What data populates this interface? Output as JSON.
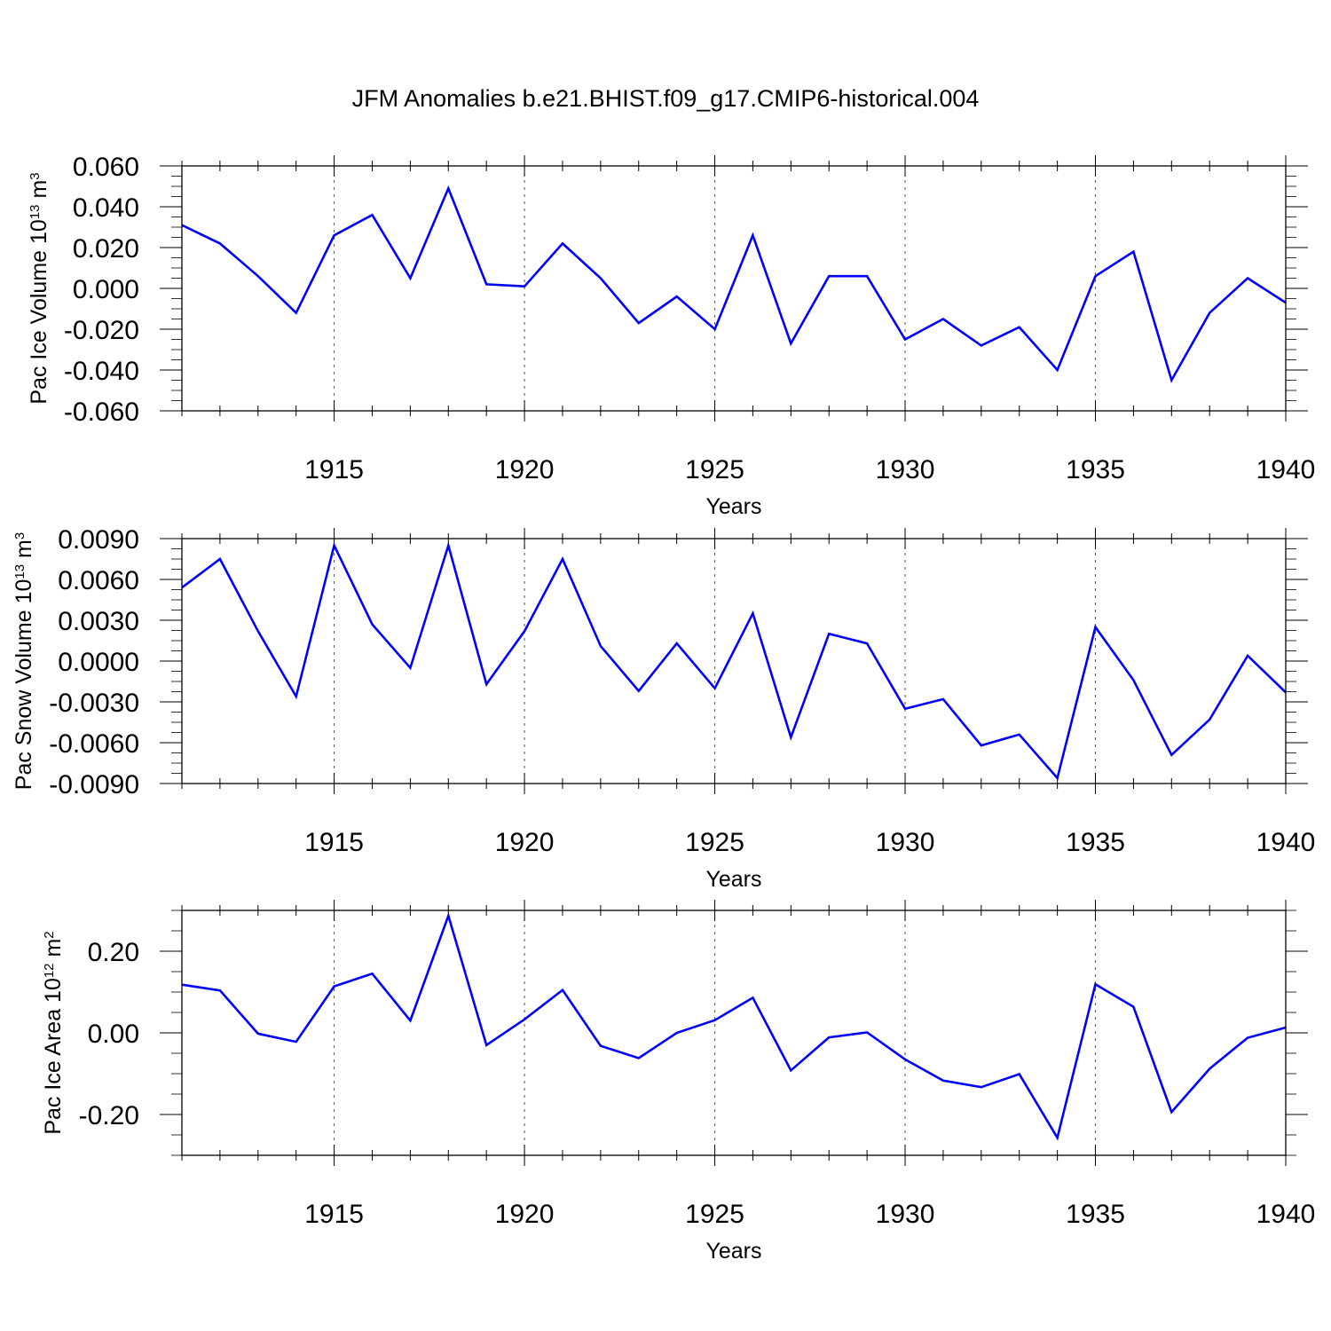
{
  "title": "JFM Anomalies b.e21.BHIST.f09_g17.CMIP6-historical.004",
  "colors": {
    "line": "#0000ff",
    "axis": "#000000",
    "grid": "#555555",
    "background": "#ffffff"
  },
  "chart_data": [
    {
      "type": "line",
      "name": "pac-ice-volume",
      "ylabel_main": "Pac Ice Volume 10",
      "ylabel_sup1": "13",
      "ylabel_mid": " m",
      "ylabel_sup2": "3",
      "xlabel": "Years",
      "xlim": [
        1911,
        1940
      ],
      "ylim": [
        -0.06,
        0.06
      ],
      "yticks": [
        -0.06,
        -0.04,
        -0.02,
        0.0,
        0.02,
        0.04,
        0.06
      ],
      "ytick_labels": [
        "-0.060",
        "-0.040",
        "-0.020",
        "0.000",
        "0.020",
        "0.040",
        "0.060"
      ],
      "yminor_step": 0.005,
      "xticks": [
        1915,
        1920,
        1925,
        1930,
        1935,
        1940
      ],
      "xtick_labels": [
        "1915",
        "1920",
        "1925",
        "1930",
        "1935",
        "1940"
      ],
      "x": [
        1911,
        1912,
        1913,
        1914,
        1915,
        1916,
        1917,
        1918,
        1919,
        1920,
        1921,
        1922,
        1923,
        1924,
        1925,
        1926,
        1927,
        1928,
        1929,
        1930,
        1931,
        1932,
        1933,
        1934,
        1935,
        1936,
        1937,
        1938,
        1939,
        1940
      ],
      "values": [
        0.031,
        0.022,
        0.006,
        -0.012,
        0.026,
        0.036,
        0.005,
        0.049,
        0.002,
        0.001,
        0.022,
        0.005,
        -0.017,
        -0.004,
        -0.02,
        0.026,
        -0.027,
        0.006,
        0.006,
        -0.025,
        -0.015,
        -0.028,
        -0.019,
        -0.04,
        0.006,
        0.018,
        -0.045,
        -0.012,
        0.005,
        -0.007
      ]
    },
    {
      "type": "line",
      "name": "pac-snow-volume",
      "ylabel_main": "Pac Snow Volume 10",
      "ylabel_sup1": "13",
      "ylabel_mid": " m",
      "ylabel_sup2": "3",
      "xlabel": "Years",
      "xlim": [
        1911,
        1940
      ],
      "ylim": [
        -0.009,
        0.009
      ],
      "yticks": [
        -0.009,
        -0.006,
        -0.003,
        0.0,
        0.003,
        0.006,
        0.009
      ],
      "ytick_labels": [
        "-0.0090",
        "-0.0060",
        "-0.0030",
        "0.0000",
        "0.0030",
        "0.0060",
        "0.0090"
      ],
      "yminor_step": 0.00075,
      "xticks": [
        1915,
        1920,
        1925,
        1930,
        1935,
        1940
      ],
      "xtick_labels": [
        "1915",
        "1920",
        "1925",
        "1930",
        "1935",
        "1940"
      ],
      "x": [
        1911,
        1912,
        1913,
        1914,
        1915,
        1916,
        1917,
        1918,
        1919,
        1920,
        1921,
        1922,
        1923,
        1924,
        1925,
        1926,
        1927,
        1928,
        1929,
        1930,
        1931,
        1932,
        1933,
        1934,
        1935,
        1936,
        1937,
        1938,
        1939,
        1940
      ],
      "values": [
        0.0054,
        0.0075,
        0.0022,
        -0.0026,
        0.0085,
        0.0027,
        -0.0005,
        0.0085,
        -0.0017,
        0.0022,
        0.0075,
        0.0011,
        -0.0022,
        0.0013,
        -0.002,
        0.0035,
        -0.0056,
        0.002,
        0.0013,
        -0.0035,
        -0.0028,
        -0.0062,
        -0.0054,
        -0.0086,
        0.0025,
        -0.0014,
        -0.0069,
        -0.0043,
        0.0004,
        -0.0023
      ]
    },
    {
      "type": "line",
      "name": "pac-ice-area",
      "ylabel_main": "Pac Ice Area 10",
      "ylabel_sup1": "12",
      "ylabel_mid": " m",
      "ylabel_sup2": "2",
      "xlabel": "Years",
      "xlim": [
        1911,
        1940
      ],
      "ylim": [
        -0.3,
        0.3
      ],
      "yticks": [
        -0.2,
        0.0,
        0.2
      ],
      "ytick_labels": [
        "-0.20",
        "0.00",
        "0.20"
      ],
      "yminor_step": 0.05,
      "xticks": [
        1915,
        1920,
        1925,
        1930,
        1935,
        1940
      ],
      "xtick_labels": [
        "1915",
        "1920",
        "1925",
        "1930",
        "1935",
        "1940"
      ],
      "x": [
        1911,
        1912,
        1913,
        1914,
        1915,
        1916,
        1917,
        1918,
        1919,
        1920,
        1921,
        1922,
        1923,
        1924,
        1925,
        1926,
        1927,
        1928,
        1929,
        1930,
        1931,
        1932,
        1933,
        1934,
        1935,
        1936,
        1937,
        1938,
        1939,
        1940
      ],
      "values": [
        0.118,
        0.104,
        -0.002,
        -0.022,
        0.114,
        0.145,
        0.03,
        0.287,
        -0.03,
        0.033,
        0.105,
        -0.032,
        -0.062,
        0.0,
        0.031,
        0.086,
        -0.092,
        -0.011,
        0.001,
        -0.065,
        -0.117,
        -0.133,
        -0.101,
        -0.257,
        0.119,
        0.064,
        -0.194,
        -0.088,
        -0.012,
        0.013
      ]
    }
  ]
}
